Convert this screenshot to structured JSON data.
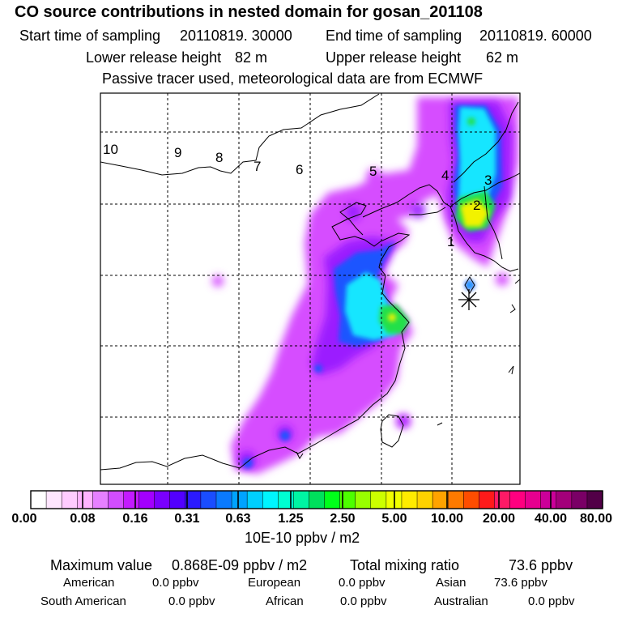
{
  "header": {
    "title": "CO  source contributions in nested domain for gosan_201108",
    "start_label": "Start time of sampling",
    "start_value": "20110819. 30000",
    "end_label": "End time of sampling",
    "end_value": "20110819. 60000",
    "lower_label": "Lower release height",
    "lower_value": "82 m",
    "upper_label": "Upper release height",
    "upper_value": "62 m",
    "note": "Passive tracer used, meteorological data are from ECMWF"
  },
  "map": {
    "time_markers": [
      "1",
      "2",
      "3",
      "4",
      "5",
      "6",
      "7",
      "8",
      "9",
      "10"
    ],
    "receptor": "gosan"
  },
  "legend": {
    "tick_labels": [
      "0.00",
      "0.08",
      "0.16",
      "0.31",
      "0.63",
      "1.25",
      "2.50",
      "5.00",
      "10.00",
      "20.00",
      "40.00",
      "80.00"
    ],
    "units": "10E-10 ppbv / m2",
    "colors": [
      "#ffffff",
      "#ffe6ff",
      "#ffccff",
      "#ffb3ff",
      "#e680ff",
      "#d24dff",
      "#c31aff",
      "#a300ff",
      "#7a00ff",
      "#5200ff",
      "#2b1aff",
      "#1a4dff",
      "#0a7aff",
      "#00a3ff",
      "#00cfff",
      "#00f5ff",
      "#00ffd2",
      "#00f5a3",
      "#00e05c",
      "#00ff1a",
      "#4dff00",
      "#99ff00",
      "#ccff00",
      "#f0ff00",
      "#ffeb00",
      "#ffd200",
      "#ffa300",
      "#ff7a00",
      "#ff4d00",
      "#ff1a1a",
      "#ff1a66",
      "#ff0080",
      "#e6008f",
      "#cc0099",
      "#a3007a",
      "#7a0066",
      "#520047"
    ]
  },
  "summary": {
    "max_label": "Maximum value",
    "max_value": "0.868E-09 ppbv / m2",
    "total_label": "Total mixing ratio",
    "total_value": "73.6 ppbv",
    "regions": [
      {
        "name": "American",
        "value": "0.0 ppbv"
      },
      {
        "name": "European",
        "value": "0.0 ppbv"
      },
      {
        "name": "Asian",
        "value": "73.6 ppbv"
      },
      {
        "name": "South American",
        "value": "0.0 ppbv"
      },
      {
        "name": "African",
        "value": "0.0 ppbv"
      },
      {
        "name": "Australian",
        "value": "0.0 ppbv"
      }
    ]
  }
}
